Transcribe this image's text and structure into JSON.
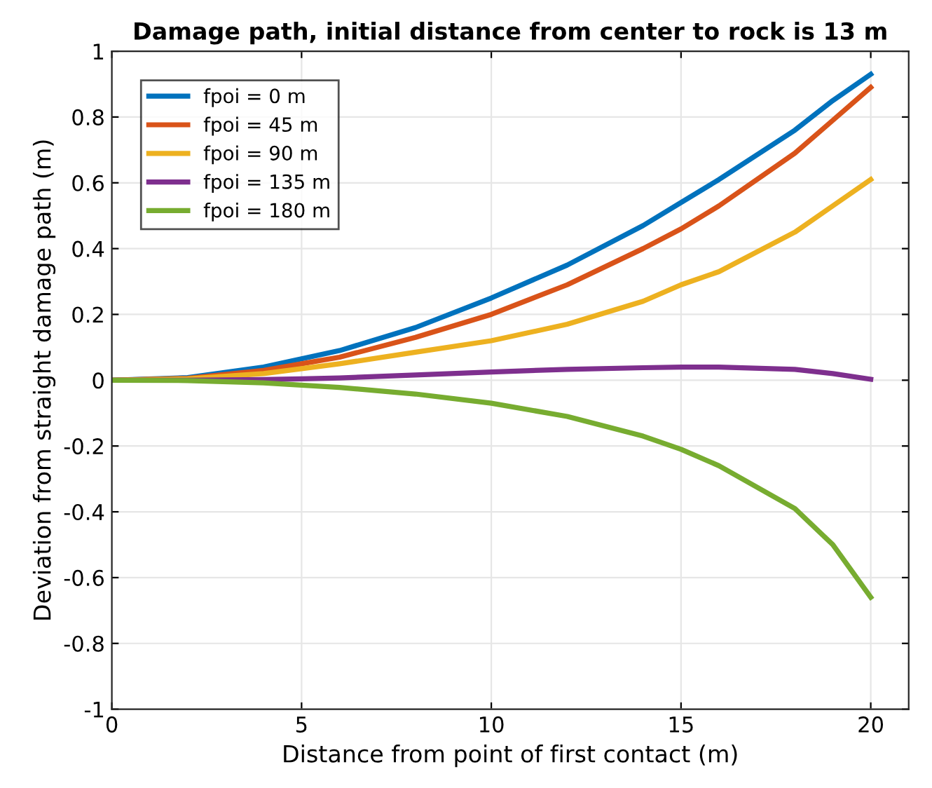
{
  "chart_data": {
    "type": "line",
    "title": "Damage path, initial distance from center to rock is 13 m",
    "xlabel": "Distance from point of first contact (m)",
    "ylabel": "Deviation from straight damage path (m)",
    "x": [
      0,
      2,
      4,
      5,
      6,
      8,
      10,
      12,
      14,
      15,
      16,
      18,
      19,
      20
    ],
    "series": [
      {
        "name": "fpoi = 0 m",
        "color": "#0072bd",
        "values": [
          0,
          0.008,
          0.04,
          0.065,
          0.09,
          0.16,
          0.25,
          0.35,
          0.47,
          0.54,
          0.61,
          0.76,
          0.85,
          0.93
        ]
      },
      {
        "name": "fpoi = 45 m",
        "color": "#d95319",
        "values": [
          0,
          0.006,
          0.03,
          0.05,
          0.07,
          0.13,
          0.2,
          0.29,
          0.4,
          0.46,
          0.53,
          0.69,
          0.79,
          0.89
        ]
      },
      {
        "name": "fpoi = 90 m",
        "color": "#edb120",
        "values": [
          0,
          0.004,
          0.02,
          0.035,
          0.05,
          0.085,
          0.12,
          0.17,
          0.24,
          0.29,
          0.33,
          0.45,
          0.53,
          0.61
        ]
      },
      {
        "name": "fpoi = 135 m",
        "color": "#7e2f8e",
        "values": [
          0,
          0,
          0.002,
          0.004,
          0.007,
          0.016,
          0.025,
          0.033,
          0.038,
          0.04,
          0.04,
          0.033,
          0.02,
          0.003
        ]
      },
      {
        "name": "fpoi = 180 m",
        "color": "#77ac30",
        "values": [
          0,
          -0.001,
          -0.008,
          -0.015,
          -0.022,
          -0.042,
          -0.07,
          -0.11,
          -0.17,
          -0.21,
          -0.26,
          -0.39,
          -0.5,
          -0.66
        ]
      }
    ],
    "xlim": [
      0,
      21
    ],
    "xticks": [
      0,
      5,
      10,
      15,
      20
    ],
    "ylim": [
      -1,
      1
    ],
    "yticks": [
      -1,
      -0.8,
      -0.6,
      -0.4,
      -0.2,
      0,
      0.2,
      0.4,
      0.6,
      0.8,
      1
    ],
    "grid": true,
    "legend": "top left",
    "marker": "none",
    "line_style": "solid"
  }
}
